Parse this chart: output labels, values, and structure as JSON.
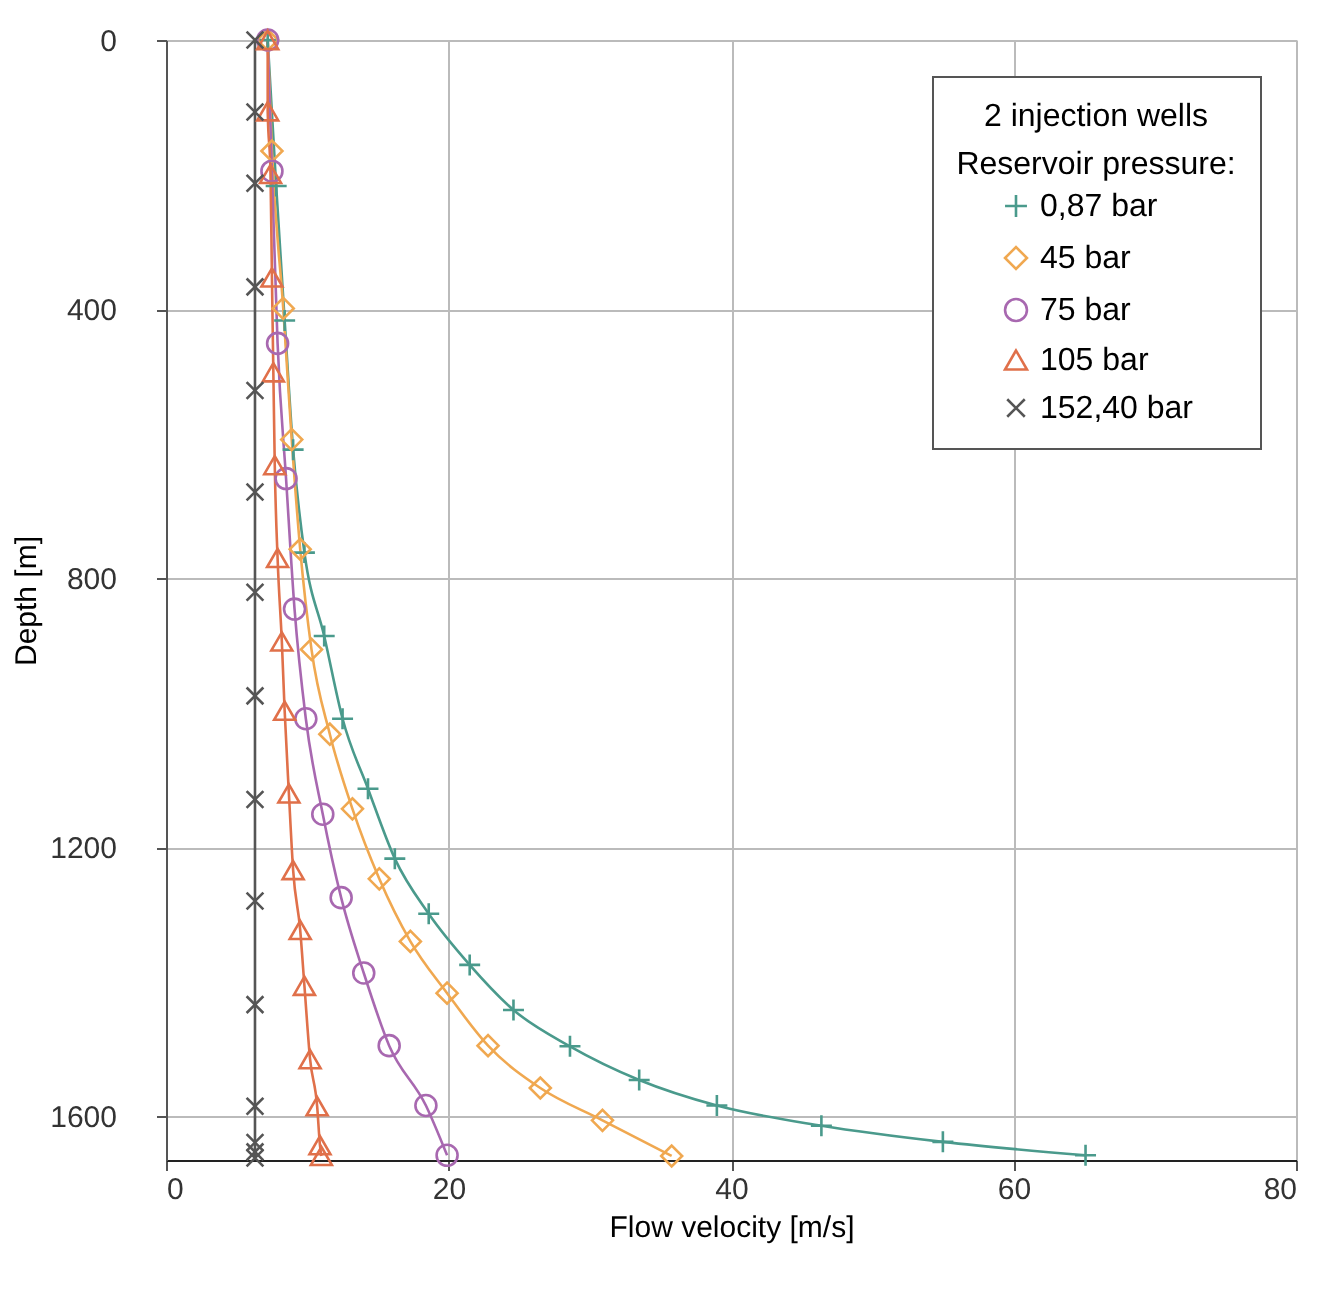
{
  "chart_data": {
    "type": "line",
    "xlabel": "Flow velocity [m/s]",
    "ylabel": "Depth [m]",
    "legend_title": "Reservoir pressure:",
    "annotations": [
      "2 injection wells"
    ],
    "xlim": [
      0,
      80
    ],
    "xticks": [
      0,
      20,
      40,
      60,
      80
    ],
    "ylim": [
      1665,
      0
    ],
    "yticks": [
      0,
      400,
      800,
      1200,
      1600
    ],
    "grid": true,
    "legend": "top right",
    "line_style": "solid",
    "series": [
      {
        "name": "0,87 bar",
        "color": "#4a9a8c",
        "marker": "plus",
        "x": [
          7.2,
          7.8,
          8.4,
          9.0,
          9.8,
          11.2,
          12.5,
          14.3,
          16.2,
          18.6,
          21.5,
          24.6,
          28.6,
          33.5,
          39.0,
          46.4,
          55.0,
          65.1
        ],
        "values": [
          0,
          217,
          417,
          609,
          762,
          886,
          1009,
          1113,
          1217,
          1299,
          1375,
          1442,
          1496,
          1546,
          1584,
          1614,
          1638,
          1658
        ]
      },
      {
        "name": "45 bar",
        "color": "#f0a850",
        "marker": "diamond",
        "x": [
          7.2,
          7.5,
          8.3,
          8.9,
          9.5,
          10.3,
          11.6,
          13.2,
          15.1,
          17.3,
          19.9,
          22.8,
          26.5,
          30.9,
          35.8
        ],
        "values": [
          0,
          165,
          399,
          594,
          757,
          906,
          1032,
          1143,
          1247,
          1340,
          1417,
          1495,
          1558,
          1606,
          1659
        ]
      },
      {
        "name": "75 bar",
        "color": "#a868b0",
        "marker": "circle",
        "x": [
          7.2,
          7.5,
          7.9,
          8.5,
          9.1,
          9.9,
          11.1,
          12.4,
          14.0,
          15.8,
          18.4,
          19.9
        ],
        "values": [
          0,
          195,
          451,
          652,
          846,
          1009,
          1151,
          1275,
          1387,
          1495,
          1584,
          1658
        ]
      },
      {
        "name": "105 bar",
        "color": "#e0704a",
        "marker": "triangle",
        "x": [
          7.2,
          7.2,
          7.4,
          7.5,
          7.6,
          7.7,
          7.9,
          8.2,
          8.4,
          8.7,
          9.0,
          9.5,
          9.8,
          10.2,
          10.7,
          10.9,
          11.0
        ],
        "values": [
          0,
          106,
          199,
          353,
          494,
          632,
          770,
          894,
          997,
          1120,
          1234,
          1323,
          1406,
          1515,
          1585,
          1643,
          1659
        ]
      },
      {
        "name": "152,40 bar",
        "color": "#555555",
        "marker": "cross",
        "x": [
          6.3,
          6.3,
          6.3,
          6.3,
          6.3,
          6.3,
          6.3,
          6.3,
          6.3,
          6.3,
          6.3,
          6.3,
          6.3,
          6.3,
          6.3
        ],
        "values": [
          0,
          107,
          213,
          367,
          521,
          672,
          821,
          975,
          1129,
          1280,
          1434,
          1585,
          1639,
          1653,
          1662
        ]
      }
    ]
  }
}
